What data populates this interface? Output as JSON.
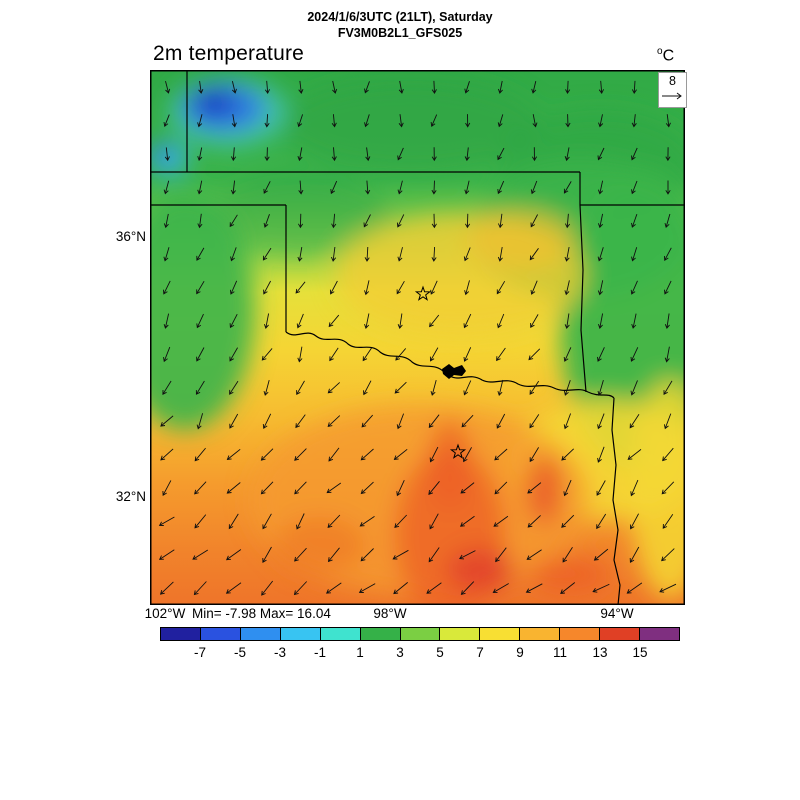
{
  "header": {
    "datetime_line": "2024/1/6/3UTC (21LT), Saturday",
    "model_line": "FV3M0B2L1_GFS025",
    "plot_title": "2m temperature",
    "units_sup": "o",
    "units_main": "C"
  },
  "map": {
    "lat_labels": [
      "36°N",
      "32°N"
    ],
    "lon_labels": [
      "102°W",
      "98°W",
      "94°W"
    ],
    "stats_text": "Min= -7.98 Max= 16.04",
    "wind_reference": "8"
  },
  "chart_data": {
    "type": "heatmap",
    "title": "2m temperature",
    "units": "°C",
    "valid_time": "2024/1/6/3UTC (21LT), Saturday",
    "model_run": "FV3M0B2L1_GFS025",
    "stat_min": -7.98,
    "stat_max": 16.04,
    "lat_ticks": [
      "36°N",
      "32°N"
    ],
    "lon_ticks": [
      "102°W",
      "98°W",
      "94°W"
    ],
    "wind_reference_vector_ms": 8,
    "wind_flow": "arrows point south to southwest (northeasterly surface flow), longer/stronger toward the south",
    "overlays": [
      "wind vector arrows",
      "state boundaries (Texas / Oklahoma / Kansas / Arkansas region)",
      "Red River and lake outline",
      "two star city markers"
    ],
    "colorbar": {
      "orientation": "horizontal",
      "tick_labels": [
        "-7",
        "-5",
        "-3",
        "-1",
        "1",
        "3",
        "5",
        "7",
        "9",
        "11",
        "13",
        "15"
      ],
      "colors": [
        "#20209f",
        "#2a52e0",
        "#2f8ff0",
        "#38c4f2",
        "#3fe3cf",
        "#35b148",
        "#7bcf43",
        "#d9e93a",
        "#f8df33",
        "#f9b430",
        "#f6872b",
        "#e04025",
        "#7f2f80"
      ]
    },
    "regions": [
      {
        "area": "far northwest corner (high plains)",
        "approx_temp_c": "-7 to -1 (blue/cyan pocket)"
      },
      {
        "area": "north band and northeast quadrant",
        "approx_temp_c": "1 to 5 (green)"
      },
      {
        "area": "central Oklahoma around north star marker",
        "approx_temp_c": "5 to 9 (yellow/gold)"
      },
      {
        "area": "Red River valley / north-central Texas",
        "approx_temp_c": "7 to 11 (yellow-orange)"
      },
      {
        "area": "southern third of map",
        "approx_temp_c": "9 to 15 (orange with red streaks)"
      }
    ],
    "markers": [
      {
        "symbol": "star",
        "note": "city marker, upper-center of map"
      },
      {
        "symbol": "star",
        "note": "city marker, lower-center of map"
      }
    ]
  }
}
